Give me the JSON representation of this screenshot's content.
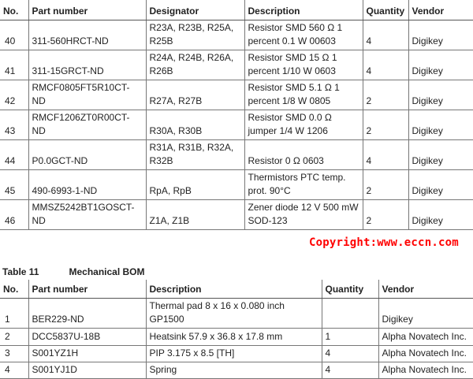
{
  "table1": {
    "headers": [
      "No.",
      "Part number",
      "Designator",
      "Description",
      "Quantity",
      "Vendor"
    ],
    "rows": [
      [
        "40",
        "311-560HRCT-ND",
        "R23A, R23B, R25A, R25B",
        "Resistor SMD 560 Ω 1 percent 0.1 W 00603",
        "4",
        "Digikey"
      ],
      [
        "41",
        "311-15GRCT-ND",
        "R24A, R24B, R26A, R26B",
        "Resistor SMD 15 Ω 1 percent 1/10 W 0603",
        "4",
        "Digikey"
      ],
      [
        "42",
        "RMCF0805FT5R10CT-ND",
        "R27A, R27B",
        "Resistor SMD 5.1 Ω 1 percent 1/8 W 0805",
        "2",
        "Digikey"
      ],
      [
        "43",
        "RMCF1206ZT0R00CT-ND",
        "R30A, R30B",
        "Resistor SMD 0.0 Ω jumper 1/4 W 1206",
        "2",
        "Digikey"
      ],
      [
        "44",
        "P0.0GCT-ND",
        "R31A, R31B, R32A, R32B",
        "Resistor 0 Ω 0603",
        "4",
        "Digikey"
      ],
      [
        "45",
        "490-6993-1-ND",
        "RpA, RpB",
        "Thermistors PTC temp. prot. 90°C",
        "2",
        "Digikey"
      ],
      [
        "46",
        "MMSZ5242BT1GOSCT-ND",
        "Z1A, Z1B",
        "Zener diode 12 V 500 mW SOD-123",
        "2",
        "Digikey"
      ]
    ]
  },
  "caption": {
    "label": "Table 11",
    "title": "Mechanical BOM"
  },
  "table2": {
    "headers": [
      "No.",
      "Part number",
      "Description",
      "Quantity",
      "Vendor"
    ],
    "rows": [
      [
        "1",
        "BER229-ND",
        "Thermal pad 8 x 16 x 0.080 inch GP1500",
        "",
        "Digikey"
      ],
      [
        "2",
        "DCC5837U-18B",
        "Heatsink 57.9 x 36.8 x 17.8 mm",
        "1",
        "Alpha Novatech Inc."
      ],
      [
        "3",
        "S001YZ1H",
        "PIP 3.175 x 8.5 [TH]",
        "4",
        "Alpha Novatech Inc."
      ],
      [
        "4",
        "S001YJ1D",
        "Spring",
        "4",
        "Alpha Novatech Inc."
      ]
    ]
  },
  "watermark": "Copyright:www.eccn.com"
}
